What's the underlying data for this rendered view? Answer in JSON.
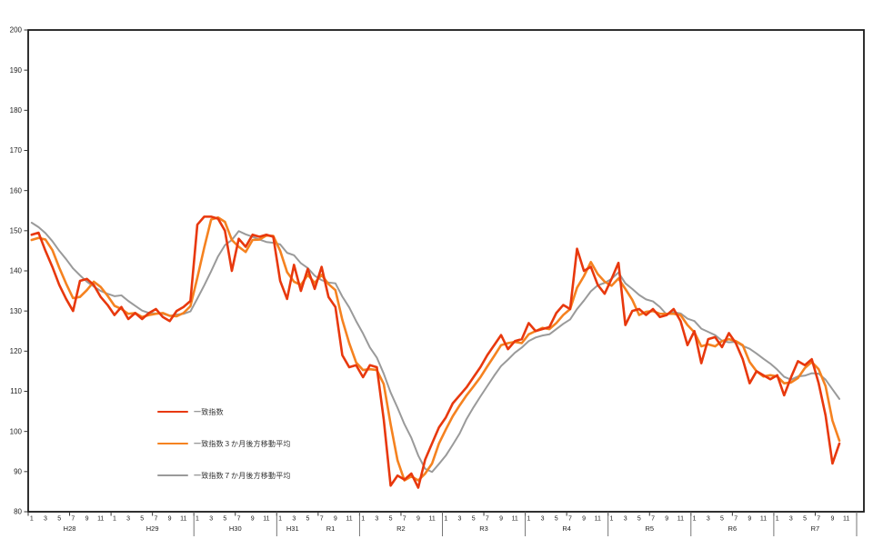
{
  "chart_data": {
    "type": "line",
    "title": "",
    "background": "#ffffff",
    "grid": false,
    "legend_position": "inside-lower-left",
    "y_axis": {
      "min": 80,
      "max": 200,
      "tick_step": 10,
      "tick_labels": [
        80,
        90,
        100,
        110,
        120,
        130,
        140,
        150,
        160,
        170,
        180,
        190,
        200
      ]
    },
    "x_axis": {
      "months_per_year": 12,
      "total_months": 120,
      "month_labels": [
        "1",
        "3",
        "5",
        "7",
        "9",
        "11"
      ],
      "years": [
        {
          "label": "H28"
        },
        {
          "label": "H29"
        },
        {
          "label": "H30"
        },
        {
          "label": "H31/R1",
          "split": [
            {
              "text": "H31",
              "month_pos": 2.3
            },
            {
              "text": "R1",
              "month_pos": 7.8
            }
          ]
        },
        {
          "label": "R2"
        },
        {
          "label": "R3"
        },
        {
          "label": "R4"
        },
        {
          "label": "R5"
        },
        {
          "label": "R6"
        },
        {
          "label": "R7"
        }
      ]
    },
    "series": [
      {
        "key": "coincident-index",
        "name": "一致指数",
        "color": "#e8380d",
        "line_width": 2.6,
        "values": [
          149,
          149.5,
          145,
          141,
          136.5,
          133,
          130,
          137.5,
          138,
          136.5,
          133.5,
          131.5,
          129,
          131,
          128,
          129.5,
          128,
          129.5,
          130.5,
          128.5,
          127.5,
          130,
          131,
          132.5,
          151.5,
          153.5,
          153.5,
          153,
          150,
          140,
          148,
          146,
          149,
          148.5,
          149,
          148.5,
          137.5,
          133,
          141.5,
          135,
          140.5,
          135.5,
          141,
          133.5,
          131,
          119,
          116,
          116.5,
          113.5,
          116.5,
          116,
          103,
          86.5,
          89,
          88,
          89.5,
          86,
          93,
          97,
          101,
          103.5,
          107,
          109,
          111,
          113.5,
          116,
          119,
          121.5,
          124,
          120.5,
          122.5,
          123,
          127,
          125,
          125.5,
          126,
          129.5,
          131.5,
          130.5,
          145.5,
          140,
          141,
          136.5,
          134.3,
          138,
          142,
          126.5,
          130,
          130.5,
          129,
          130.5,
          128.5,
          129,
          130.5,
          127.5,
          121.5,
          125,
          117,
          123,
          123.5,
          121,
          124.5,
          122,
          118,
          112,
          115,
          114,
          113,
          114,
          109,
          113.5,
          117.5,
          116.5,
          118,
          112,
          104,
          92,
          97
        ]
      },
      {
        "key": "coincident-index-3month-backward-ma",
        "name": "一致指数３か月後方移動平均",
        "color": "#f58220",
        "line_width": 2.6,
        "values": [
          147.7,
          148.2,
          147.8,
          145.2,
          140.8,
          136.8,
          133.2,
          133.5,
          135.2,
          137.3,
          136.0,
          133.8,
          131.3,
          130.5,
          129.3,
          129.5,
          128.5,
          129.0,
          129.3,
          129.5,
          128.8,
          128.7,
          129.5,
          131.2,
          138.3,
          145.8,
          152.8,
          153.3,
          152.2,
          147.7,
          146.0,
          144.7,
          147.7,
          147.8,
          148.8,
          148.7,
          145.0,
          139.7,
          137.3,
          136.5,
          139.0,
          137.0,
          139.0,
          136.7,
          135.2,
          127.8,
          122.0,
          117.2,
          115.3,
          115.5,
          115.3,
          111.8,
          101.8,
          92.8,
          87.8,
          88.8,
          87.8,
          89.5,
          92.0,
          97.0,
          100.5,
          103.8,
          106.5,
          109.0,
          111.2,
          113.5,
          116.2,
          118.8,
          121.5,
          122.0,
          122.3,
          122.0,
          124.2,
          125.0,
          125.8,
          125.5,
          127.0,
          129.0,
          130.5,
          135.8,
          138.7,
          142.2,
          139.2,
          137.3,
          136.3,
          138.1,
          135.5,
          132.8,
          129.0,
          129.8,
          130.0,
          129.3,
          129.3,
          129.3,
          129.0,
          126.5,
          124.7,
          121.2,
          121.7,
          121.2,
          122.5,
          123.0,
          122.5,
          121.5,
          117.3,
          115.0,
          113.7,
          114.0,
          113.7,
          112.0,
          112.2,
          113.3,
          115.8,
          117.3,
          115.5,
          111.3,
          102.7,
          97.7
        ]
      },
      {
        "key": "coincident-index-7month-backward-ma",
        "name": "一致指数７か月後方移動平均",
        "color": "#9a9a9a",
        "line_width": 2.0,
        "values": [
          152.0,
          150.9,
          149.4,
          147.4,
          145.0,
          142.9,
          140.6,
          138.9,
          137.3,
          136.1,
          135.0,
          134.3,
          133.7,
          133.9,
          132.5,
          131.3,
          130.1,
          129.5,
          129.4,
          129.3,
          128.8,
          129.1,
          129.3,
          129.9,
          133.1,
          136.4,
          139.9,
          143.6,
          146.4,
          147.7,
          149.9,
          149.1,
          148.5,
          147.8,
          147.2,
          147.0,
          146.6,
          144.5,
          143.9,
          141.9,
          140.7,
          138.8,
          137.7,
          137.1,
          136.9,
          133.6,
          130.9,
          127.5,
          124.4,
          120.9,
          118.4,
          114.4,
          109.7,
          105.9,
          101.8,
          98.4,
          94.0,
          90.7,
          89.9,
          91.9,
          94.0,
          96.7,
          99.5,
          103.1,
          106.0,
          108.7,
          111.3,
          113.9,
          116.3,
          117.9,
          119.6,
          120.9,
          122.5,
          123.4,
          123.9,
          124.2,
          125.5,
          126.8,
          127.9,
          130.5,
          132.6,
          134.9,
          136.4,
          137.0,
          138.0,
          139.6,
          136.9,
          135.5,
          134.0,
          132.9,
          132.4,
          131.0,
          129.1,
          129.7,
          129.4,
          128.1,
          127.5,
          125.6,
          124.8,
          124.0,
          122.6,
          122.2,
          122.3,
          121.3,
          120.6,
          119.4,
          118.1,
          116.9,
          115.4,
          113.6,
          112.9,
          113.7,
          113.9,
          114.5,
          114.4,
          112.9,
          110.5,
          108.1
        ]
      }
    ]
  }
}
